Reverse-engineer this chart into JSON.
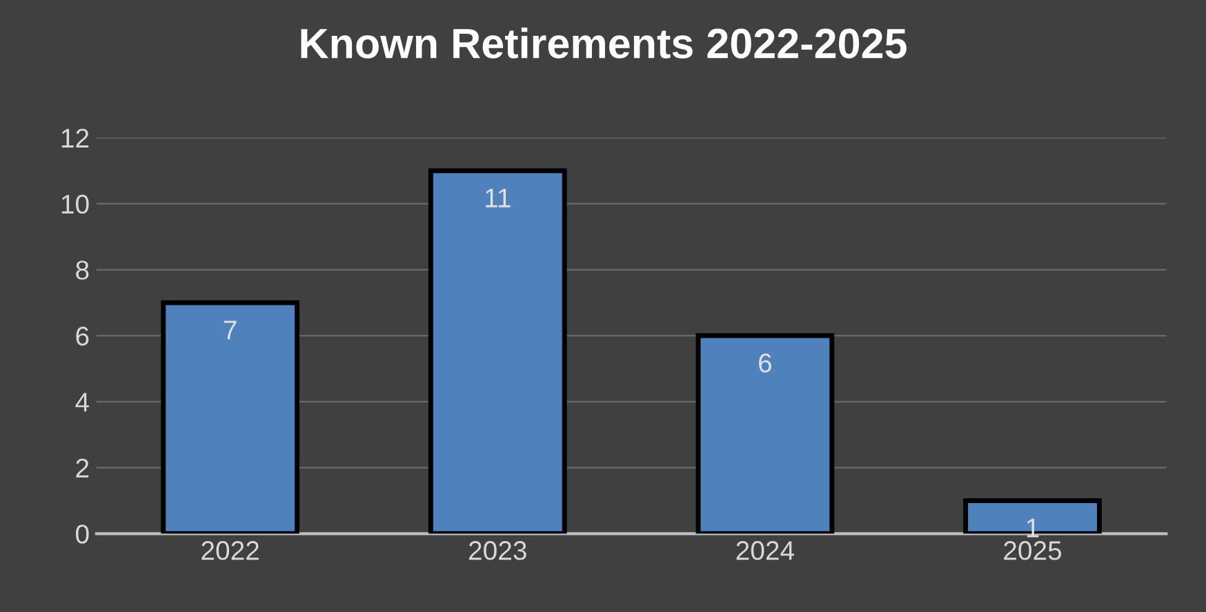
{
  "chart_data": {
    "type": "bar",
    "title": "Known Retirements 2022-2025",
    "categories": [
      "2022",
      "2023",
      "2024",
      "2025"
    ],
    "values": [
      7,
      11,
      6,
      1
    ],
    "color": "#4f81bd",
    "ylim": [
      0,
      12
    ],
    "yticks": [
      0,
      2,
      4,
      6,
      8,
      10,
      12
    ],
    "grid": "y",
    "data_labels": true
  }
}
